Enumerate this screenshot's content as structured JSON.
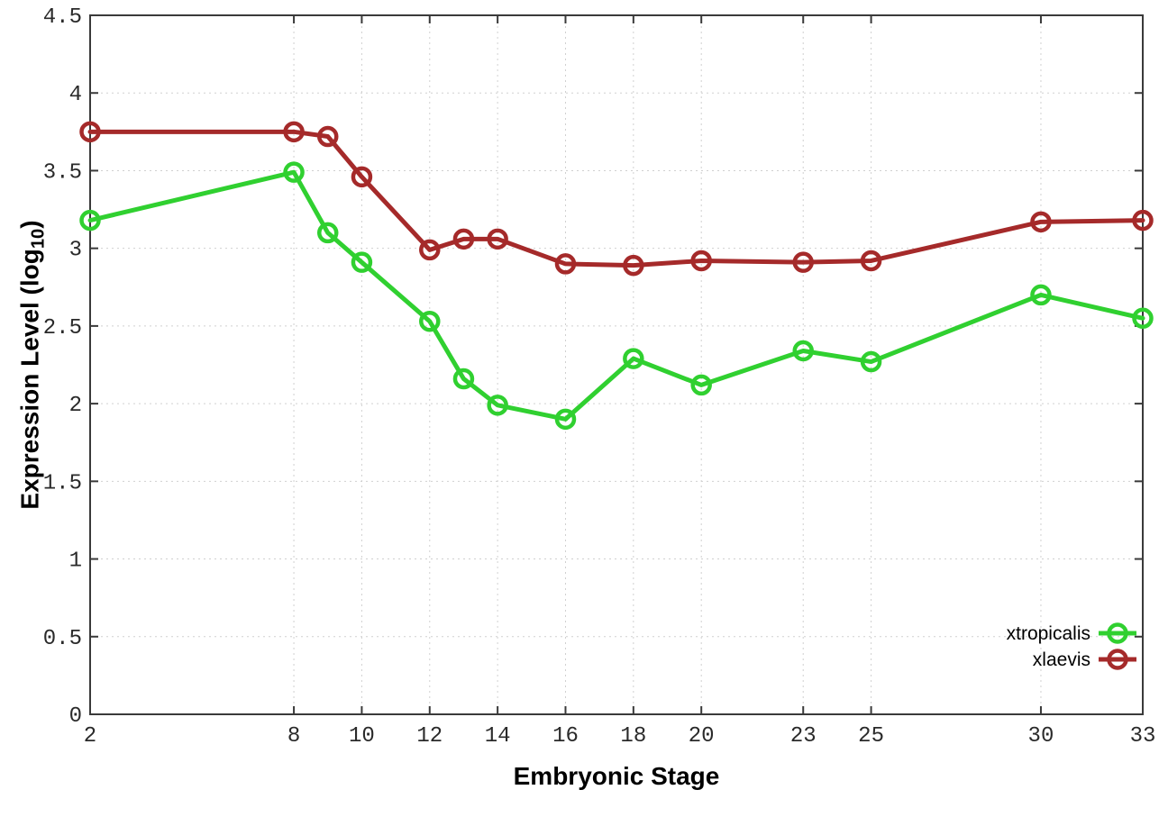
{
  "figure": {
    "xlabel": "Embryonic Stage",
    "ylabel_main": "Expression Level (log",
    "ylabel_sub": "10",
    "ylabel_close": ")"
  },
  "chart_data": {
    "type": "line",
    "x": [
      2,
      8,
      9,
      10,
      12,
      13,
      14,
      16,
      18,
      20,
      23,
      25,
      30,
      33
    ],
    "series": [
      {
        "name": "xtropicalis",
        "color": "#30d030",
        "values": [
          3.18,
          3.49,
          3.1,
          2.91,
          2.53,
          2.16,
          1.99,
          1.9,
          2.29,
          2.12,
          2.34,
          2.27,
          2.7,
          2.55
        ]
      },
      {
        "name": "xlaevis",
        "color": "#a52a2a",
        "values": [
          3.75,
          3.75,
          3.72,
          3.46,
          2.99,
          3.06,
          3.06,
          2.9,
          2.89,
          2.92,
          2.91,
          2.92,
          3.17,
          3.18
        ]
      }
    ],
    "xlabel": "Embryonic Stage",
    "ylabel": "Expression Level (log10)",
    "xticks": [
      2,
      8,
      10,
      12,
      14,
      16,
      18,
      20,
      23,
      25,
      30,
      33
    ],
    "yticks": [
      0,
      0.5,
      1,
      1.5,
      2,
      2.5,
      3,
      3.5,
      4,
      4.5
    ],
    "xlim": [
      2,
      33
    ],
    "ylim": [
      0,
      4.5
    ],
    "grid": true,
    "legend_position": "bottom-right",
    "marker": "open-circle"
  },
  "style": {
    "background": "#ffffff",
    "grid_color": "#d0d0d0",
    "border_color": "#3a3a3a",
    "tick_text_color": "#2a2a2a",
    "line_width": 5,
    "marker_radius": 9.5,
    "marker_stroke": 4.5
  }
}
